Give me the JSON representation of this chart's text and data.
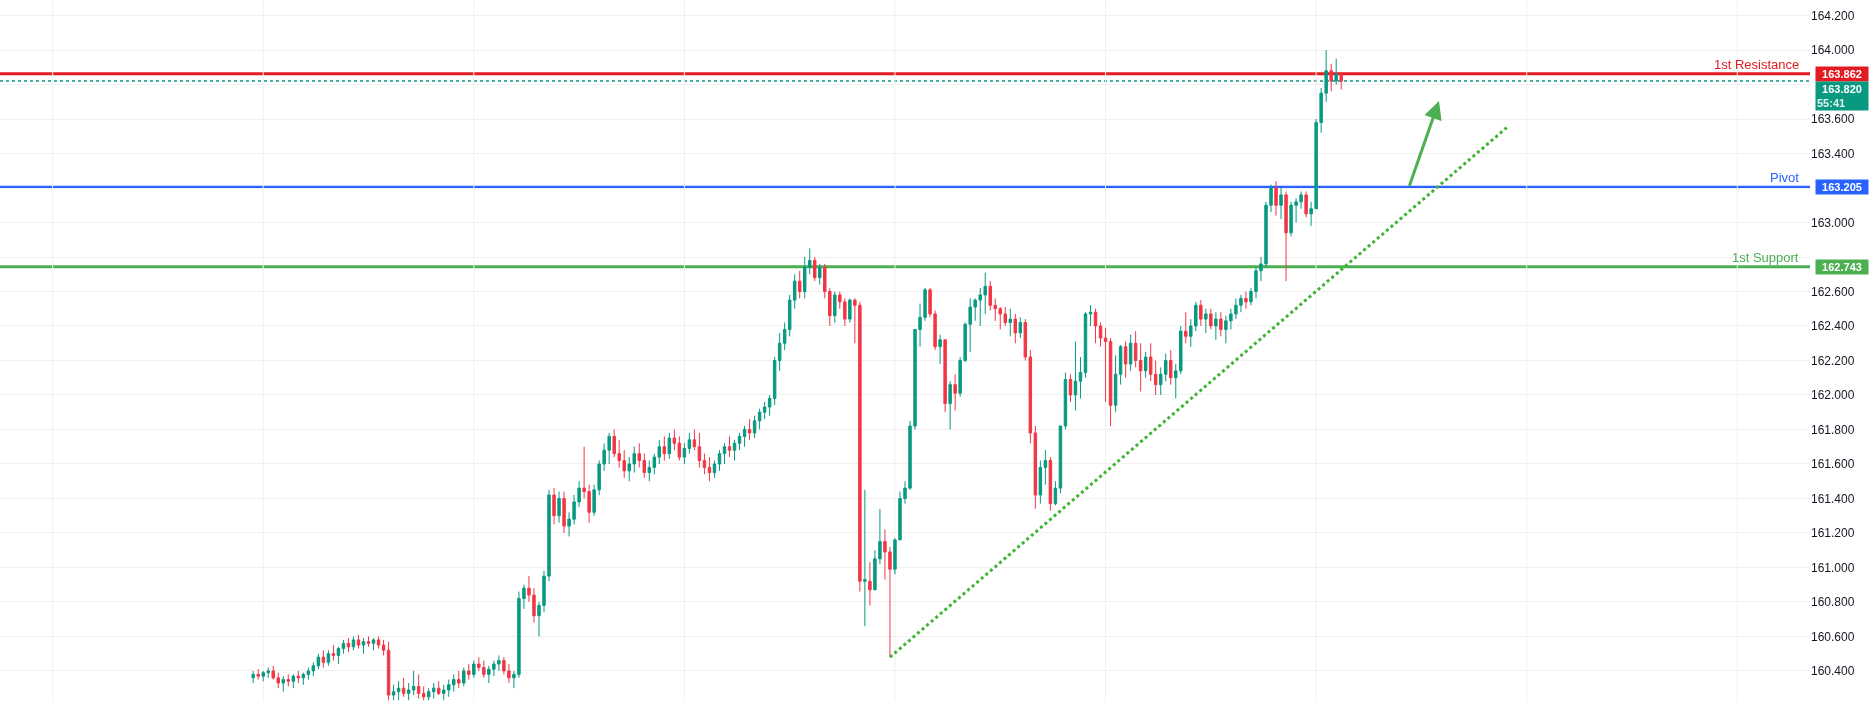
{
  "chart_data": {
    "type": "candlestick",
    "categories": [
      null,
      null,
      null,
      null,
      null,
      null,
      null,
      null,
      null,
      null,
      null,
      null,
      null,
      null,
      null,
      null,
      null,
      null,
      null,
      null,
      null,
      null,
      null,
      null,
      null,
      null,
      null,
      null,
      null,
      null,
      null,
      null,
      null,
      null,
      null,
      null,
      null,
      null,
      null,
      null,
      null,
      null,
      null,
      null,
      null,
      null,
      null,
      null,
      null,
      null,
      null,
      null,
      null,
      null,
      null,
      null,
      null,
      null,
      null,
      null,
      null,
      null,
      null,
      null,
      null,
      null,
      null,
      null,
      null,
      null,
      null,
      null,
      null,
      null,
      null,
      null,
      null,
      null,
      null,
      null,
      null,
      null,
      null,
      null,
      null,
      null,
      null,
      null,
      null,
      null,
      null,
      null,
      null,
      null,
      null,
      null,
      null,
      null,
      null,
      null,
      null,
      null,
      null,
      null,
      null,
      null,
      null,
      null,
      null,
      null,
      null,
      null,
      null,
      null,
      null,
      null,
      null,
      null,
      null,
      null,
      null,
      null,
      null,
      null,
      null,
      null,
      null,
      null,
      null,
      null,
      null,
      null,
      null,
      null,
      null,
      null,
      null,
      null,
      null,
      null,
      null,
      null,
      null,
      null,
      null,
      null,
      null,
      null,
      null,
      null,
      null,
      null,
      null,
      null,
      null,
      null,
      null,
      null,
      null,
      null,
      null,
      null,
      null,
      null,
      null,
      null,
      null,
      null,
      null,
      null,
      null,
      null,
      null,
      null,
      null,
      null,
      null,
      null,
      null,
      null,
      null,
      null,
      null,
      null,
      null,
      null,
      null,
      null,
      null,
      null,
      null,
      null,
      null,
      null,
      null,
      null,
      null,
      null,
      null,
      null,
      null,
      null,
      null,
      null,
      null,
      null,
      null,
      null,
      null,
      null,
      null,
      null,
      null,
      null,
      null,
      null,
      null,
      null,
      null,
      null,
      null,
      null,
      null,
      null,
      null,
      null,
      null,
      null,
      null,
      null,
      null,
      null,
      null,
      null,
      null,
      null,
      null,
      null,
      null,
      null,
      null,
      null,
      null,
      null,
      null,
      null,
      null,
      null,
      null,
      null,
      null,
      null,
      null,
      null,
      null,
      null,
      null,
      null,
      null,
      null,
      null,
      null,
      null,
      null,
      null,
      null,
      null,
      null,
      null,
      null,
      null,
      null,
      null,
      null,
      null,
      null,
      null,
      null,
      null,
      null,
      null,
      null,
      null,
      null,
      null,
      null,
      null,
      null,
      null,
      null,
      null,
      null,
      null,
      null,
      null,
      null,
      null,
      null,
      null,
      null,
      null,
      null,
      null,
      null,
      null,
      null,
      null,
      null,
      null,
      null,
      null,
      null,
      null,
      null,
      null,
      null,
      null,
      null,
      null,
      null,
      null,
      null,
      null,
      null,
      null,
      null,
      null,
      null,
      null,
      null,
      null,
      null,
      null,
      null,
      null,
      null,
      null,
      null,
      null,
      null,
      null,
      null,
      null,
      null,
      null,
      null,
      null,
      null,
      null,
      null,
      null,
      null,
      null,
      null,
      null,
      null,
      null,
      null,
      null,
      null,
      null
    ],
    "colors": [
      null,
      null,
      null,
      null,
      null,
      null,
      null,
      null,
      null,
      null,
      null,
      null,
      null,
      null,
      null,
      null,
      null,
      null,
      null,
      null,
      null,
      null,
      null,
      null,
      null,
      null,
      null,
      null,
      null,
      null,
      null,
      null,
      null,
      null,
      null,
      null,
      null,
      null,
      null,
      null,
      null,
      null,
      null,
      null,
      null,
      null,
      null,
      null,
      null,
      null,
      "#089981",
      "#f23645",
      "#089981",
      "#089981",
      "#f23645",
      "#f23645",
      "#089981",
      "#f23645",
      "#089981",
      "#f23645",
      "#089981",
      "#089981",
      "#089981",
      "#089981",
      "#f23645",
      "#089981",
      "#f23645",
      "#089981",
      "#089981",
      "#f23645",
      "#089981",
      "#f23645",
      "#089981",
      "#f23645",
      "#089981",
      "#f23645",
      "#f23645",
      "#f23645",
      "#089981",
      "#089981",
      "#f23645",
      "#089981",
      "#089981",
      "#f23645",
      "#f23645",
      "#089981",
      "#089981",
      "#f23645",
      "#089981",
      "#089981",
      "#089981",
      "#f23645",
      "#089981",
      "#f23645",
      "#089981",
      "#f23645",
      "#f23645",
      "#089981",
      "#089981",
      "#089981",
      "#f23645",
      "#f23645",
      "#089981",
      "#089981",
      "#089981",
      "#f23645",
      "#f23645",
      "#089981",
      "#089981",
      "#089981",
      "#f23645",
      "#089981",
      "#f23645",
      "#089981",
      "#089981",
      "#089981",
      "#f23645",
      "#f23645",
      "#089981",
      "#089981",
      "#089981",
      "#089981",
      "#f23645",
      "#f23645",
      "#f23645",
      "#089981",
      "#089981",
      "#f23645",
      "#f23645",
      "#089981",
      "#089981",
      "#089981",
      "#f23645",
      "#089981",
      "#f23645",
      "#f23645",
      "#089981",
      "#089981",
      "#f23645",
      "#f23645",
      "#f23645",
      "#f23645",
      "#089981",
      "#089981",
      "#089981",
      "#f23645",
      "#089981",
      "#089981",
      "#089981",
      "#f23645",
      "#089981",
      "#089981",
      "#089981",
      "#089981",
      "#089981",
      "#089981",
      "#089981",
      "#089981",
      "#089981",
      "#f23645",
      "#089981",
      "#089981",
      "#f23645",
      "#089981",
      "#f23645",
      "#f23645",
      "#089981",
      "#f23645",
      "#f23645",
      "#089981",
      "#f23645",
      "#f23645",
      "#089981",
      "#f23645",
      "#089981",
      "#089981",
      "#f23645",
      "#f23645",
      "#089981",
      "#089981",
      "#089981",
      "#089981",
      "#089981",
      "#089981",
      "#089981",
      "#f23645",
      "#f23645",
      "#089981",
      "#f23645",
      "#089981",
      "#f23645",
      "#089981",
      "#089981",
      "#089981",
      "#089981",
      "#089981",
      "#089981",
      "#f23645",
      "#f23645",
      "#f23645",
      "#f23645",
      "#089981",
      "#f23645",
      "#089981",
      "#f23645",
      "#f23645",
      "#f23645",
      "#089981",
      "#089981",
      "#f23645",
      "#089981",
      "#089981",
      "#089981",
      "#f23645",
      "#089981",
      "#089981",
      "#089981",
      "#089981",
      "#f23645",
      "#f23645",
      "#f23645",
      "#f23645",
      "#089981",
      "#089981",
      "#f23645",
      "#089981",
      "#f23645",
      "#f23645",
      "#089981",
      "#f23645",
      "#f23645",
      "#089981",
      "#089981",
      "#f23645",
      "#089981",
      "#089981",
      "#f23645",
      "#089981",
      "#089981",
      "#f23645",
      "#089981",
      "#f23645",
      "#089981",
      "#f23645",
      "#089981",
      "#089981",
      "#089981",
      "#089981",
      "#f23645",
      "#089981",
      "#089981",
      "#089981",
      "#089981",
      "#089981",
      "#f23645",
      "#089981",
      "#f23645",
      "#089981",
      "#089981",
      "#089981",
      "#f23645",
      "#089981",
      "#089981",
      "#089981",
      "#089981",
      "#f23645",
      "#089981",
      "#f23645",
      null,
      null,
      null,
      null,
      null,
      null,
      null,
      null,
      null,
      null,
      null,
      null,
      null,
      null,
      null,
      null,
      null,
      null,
      null,
      null,
      null,
      null,
      null,
      null,
      null,
      null,
      null,
      null,
      null,
      null,
      null,
      null,
      null,
      null,
      null,
      null,
      null,
      null,
      null,
      null,
      null,
      null,
      null,
      null,
      null,
      null,
      null,
      null,
      null,
      null,
      null,
      null,
      null,
      null,
      null,
      null,
      null,
      null,
      null,
      null,
      null,
      null,
      null,
      null,
      null,
      null,
      null,
      null,
      null,
      null,
      null,
      null,
      null,
      null,
      null,
      null,
      null,
      null,
      null,
      null,
      null,
      null,
      null,
      null,
      null,
      null,
      null,
      null,
      null,
      null,
      null,
      null,
      null
    ],
    "ohlc": [
      null,
      null,
      null,
      null,
      null,
      null,
      null,
      null,
      null,
      null,
      null,
      null,
      null,
      null,
      null,
      null,
      null,
      null,
      null,
      null,
      null,
      null,
      null,
      null,
      null,
      null,
      null,
      null,
      null,
      null,
      null,
      null,
      null,
      null,
      null,
      null,
      null,
      null,
      null,
      null,
      null,
      null,
      null,
      null,
      null,
      null,
      null,
      null,
      null,
      null,
      [
        160.36,
        160.4,
        160.33,
        160.38
      ],
      [
        160.38,
        160.41,
        160.35,
        160.37
      ],
      [
        160.37,
        160.4,
        160.34,
        160.39
      ],
      [
        160.39,
        160.42,
        160.36,
        160.4
      ],
      [
        160.4,
        160.43,
        160.35,
        160.36
      ],
      [
        160.36,
        160.39,
        160.3,
        160.33
      ],
      [
        160.33,
        160.37,
        160.28,
        160.35
      ],
      [
        160.35,
        160.38,
        160.31,
        160.34
      ],
      [
        160.34,
        160.38,
        160.3,
        160.37
      ],
      [
        160.37,
        160.4,
        160.33,
        160.36
      ],
      [
        160.36,
        160.39,
        160.32,
        160.38
      ],
      [
        160.38,
        160.42,
        160.35,
        160.4
      ],
      [
        160.4,
        160.45,
        160.37,
        160.43
      ],
      [
        160.43,
        160.5,
        160.41,
        160.48
      ],
      [
        160.48,
        160.52,
        160.42,
        160.45
      ],
      [
        160.45,
        160.52,
        160.43,
        160.5
      ],
      [
        160.5,
        160.55,
        160.46,
        160.49
      ],
      [
        160.49,
        160.54,
        160.44,
        160.53
      ],
      [
        160.53,
        160.58,
        160.5,
        160.56
      ],
      [
        160.56,
        160.59,
        160.51,
        160.54
      ],
      [
        160.54,
        160.6,
        160.52,
        160.58
      ],
      [
        160.58,
        160.61,
        160.53,
        160.55
      ],
      [
        160.55,
        160.59,
        160.5,
        160.57
      ],
      [
        160.57,
        160.6,
        160.54,
        160.56
      ],
      [
        160.56,
        160.59,
        160.52,
        160.58
      ],
      [
        160.58,
        160.6,
        160.53,
        160.55
      ],
      [
        160.55,
        160.58,
        160.49,
        160.52
      ],
      [
        160.52,
        160.57,
        160.23,
        160.26
      ],
      [
        160.26,
        160.32,
        160.23,
        160.28
      ],
      [
        160.28,
        160.34,
        160.23,
        160.3
      ],
      [
        160.3,
        160.36,
        160.25,
        160.27
      ],
      [
        160.27,
        160.33,
        160.23,
        160.29
      ],
      [
        160.29,
        160.4,
        160.26,
        160.31
      ],
      [
        160.31,
        160.38,
        160.24,
        160.27
      ],
      [
        160.27,
        160.31,
        160.23,
        160.25
      ],
      [
        160.25,
        160.3,
        160.23,
        160.28
      ],
      [
        160.28,
        160.33,
        160.24,
        160.3
      ],
      [
        160.3,
        160.34,
        160.26,
        160.27
      ],
      [
        160.27,
        160.32,
        160.23,
        160.29
      ],
      [
        160.29,
        160.35,
        160.25,
        160.32
      ],
      [
        160.32,
        160.38,
        160.28,
        160.35
      ],
      [
        160.35,
        160.4,
        160.3,
        160.33
      ],
      [
        160.33,
        160.42,
        160.31,
        160.4
      ],
      [
        160.4,
        160.44,
        160.35,
        160.38
      ],
      [
        160.38,
        160.46,
        160.36,
        160.44
      ],
      [
        160.44,
        160.48,
        160.4,
        160.42
      ],
      [
        160.42,
        160.46,
        160.36,
        160.38
      ],
      [
        160.38,
        160.43,
        160.33,
        160.41
      ],
      [
        160.41,
        160.46,
        160.37,
        160.44
      ],
      [
        160.44,
        160.49,
        160.4,
        160.46
      ],
      [
        160.46,
        160.48,
        160.38,
        160.4
      ],
      [
        160.4,
        160.44,
        160.33,
        160.36
      ],
      [
        160.36,
        160.4,
        160.3,
        160.38
      ],
      [
        160.38,
        160.86,
        160.36,
        160.82
      ],
      [
        160.82,
        160.9,
        160.76,
        160.88
      ],
      [
        160.88,
        160.95,
        160.8,
        160.84
      ],
      [
        160.84,
        160.88,
        160.68,
        160.72
      ],
      [
        160.72,
        160.8,
        160.6,
        160.78
      ],
      [
        160.78,
        160.98,
        160.74,
        160.95
      ],
      [
        160.95,
        161.45,
        160.92,
        161.42
      ],
      [
        161.42,
        161.46,
        161.25,
        161.3
      ],
      [
        161.3,
        161.44,
        161.26,
        161.4
      ],
      [
        161.4,
        161.44,
        161.2,
        161.24
      ],
      [
        161.24,
        161.32,
        161.18,
        161.28
      ],
      [
        161.28,
        161.42,
        161.25,
        161.38
      ],
      [
        161.38,
        161.5,
        161.35,
        161.46
      ],
      [
        161.46,
        161.7,
        161.4,
        161.44
      ],
      [
        161.44,
        161.48,
        161.26,
        161.32
      ],
      [
        161.32,
        161.48,
        161.3,
        161.45
      ],
      [
        161.45,
        161.62,
        161.42,
        161.6
      ],
      [
        161.6,
        161.72,
        161.56,
        161.68
      ],
      [
        161.68,
        161.78,
        161.6,
        161.76
      ],
      [
        161.76,
        161.8,
        161.64,
        161.66
      ],
      [
        161.66,
        161.74,
        161.58,
        161.62
      ],
      [
        161.62,
        161.68,
        161.52,
        161.56
      ],
      [
        161.56,
        161.64,
        161.5,
        161.6
      ],
      [
        161.6,
        161.7,
        161.55,
        161.66
      ],
      [
        161.66,
        161.72,
        161.58,
        161.62
      ],
      [
        161.62,
        161.66,
        161.52,
        161.55
      ],
      [
        161.55,
        161.62,
        161.5,
        161.58
      ],
      [
        161.58,
        161.66,
        161.54,
        161.64
      ],
      [
        161.64,
        161.74,
        161.6,
        161.7
      ],
      [
        161.7,
        161.76,
        161.62,
        161.66
      ],
      [
        161.66,
        161.78,
        161.63,
        161.75
      ],
      [
        161.75,
        161.8,
        161.68,
        161.72
      ],
      [
        161.72,
        161.76,
        161.62,
        161.64
      ],
      [
        161.64,
        161.72,
        161.6,
        161.69
      ],
      [
        161.69,
        161.78,
        161.66,
        161.74
      ],
      [
        161.74,
        161.8,
        161.68,
        161.7
      ],
      [
        161.7,
        161.78,
        161.58,
        161.62
      ],
      [
        161.62,
        161.66,
        161.54,
        161.58
      ],
      [
        161.58,
        161.64,
        161.5,
        161.55
      ],
      [
        161.55,
        161.62,
        161.52,
        161.6
      ],
      [
        161.6,
        161.68,
        161.56,
        161.66
      ],
      [
        161.66,
        161.72,
        161.6,
        161.7
      ],
      [
        161.7,
        161.76,
        161.64,
        161.68
      ],
      [
        161.68,
        161.74,
        161.62,
        161.72
      ],
      [
        161.72,
        161.78,
        161.68,
        161.76
      ],
      [
        161.76,
        161.82,
        161.7,
        161.8
      ],
      [
        161.8,
        161.86,
        161.74,
        161.78
      ],
      [
        161.78,
        161.88,
        161.75,
        161.85
      ],
      [
        161.85,
        161.92,
        161.8,
        161.9
      ],
      [
        161.9,
        161.96,
        161.86,
        161.93
      ],
      [
        161.93,
        162.0,
        161.88,
        161.98
      ],
      [
        161.98,
        162.22,
        161.94,
        162.2
      ],
      [
        162.2,
        162.36,
        162.14,
        162.3
      ],
      [
        162.3,
        162.42,
        162.26,
        162.38
      ],
      [
        162.38,
        162.58,
        162.34,
        162.55
      ],
      [
        162.55,
        162.7,
        162.5,
        162.66
      ],
      [
        162.66,
        162.72,
        162.56,
        162.6
      ],
      [
        162.6,
        162.8,
        162.56,
        162.74
      ],
      [
        162.74,
        162.85,
        162.7,
        162.78
      ],
      [
        162.78,
        162.8,
        162.66,
        162.68
      ],
      [
        162.68,
        162.76,
        162.64,
        162.74
      ],
      [
        162.74,
        162.76,
        162.56,
        162.6
      ],
      [
        162.6,
        162.62,
        162.4,
        162.46
      ],
      [
        162.46,
        162.6,
        162.42,
        162.58
      ],
      [
        162.58,
        162.6,
        162.5,
        162.54
      ],
      [
        162.54,
        162.56,
        162.4,
        162.44
      ],
      [
        162.44,
        162.56,
        162.42,
        162.55
      ],
      [
        162.55,
        162.56,
        162.3,
        162.52
      ],
      [
        162.52,
        162.54,
        160.86,
        160.92
      ],
      [
        160.92,
        161.45,
        160.66,
        160.93
      ],
      [
        160.92,
        161.03,
        160.78,
        160.87
      ],
      [
        160.87,
        161.1,
        160.87,
        161.05
      ],
      [
        161.05,
        161.34,
        161.02,
        161.15
      ],
      [
        161.15,
        161.22,
        160.93,
        161.09
      ],
      [
        161.09,
        161.12,
        160.48,
        160.99
      ],
      [
        160.99,
        161.17,
        160.96,
        161.16
      ],
      [
        161.16,
        161.44,
        161.16,
        161.4
      ],
      [
        161.4,
        161.5,
        161.37,
        161.46
      ],
      [
        161.46,
        161.85,
        161.45,
        161.82
      ],
      [
        161.82,
        162.38,
        161.8,
        162.38
      ],
      [
        162.38,
        162.53,
        162.28,
        162.45
      ],
      [
        162.45,
        162.62,
        162.43,
        162.61
      ],
      [
        162.61,
        162.62,
        162.45,
        162.47
      ],
      [
        162.47,
        162.49,
        162.26,
        162.28
      ],
      [
        162.28,
        162.35,
        162.18,
        162.32
      ],
      [
        162.32,
        162.32,
        161.9,
        161.95
      ],
      [
        161.95,
        162.08,
        161.8,
        162.06
      ],
      [
        162.06,
        162.12,
        161.91,
        162.01
      ],
      [
        162.01,
        162.22,
        161.99,
        162.2
      ],
      [
        162.2,
        162.42,
        162.19,
        162.41
      ],
      [
        162.41,
        162.56,
        162.25,
        162.51
      ],
      [
        162.51,
        162.56,
        162.43,
        162.55
      ],
      [
        162.55,
        162.62,
        162.4,
        162.58
      ],
      [
        162.58,
        162.71,
        162.47,
        162.63
      ],
      [
        162.63,
        162.66,
        162.49,
        162.52
      ],
      [
        162.52,
        162.56,
        162.43,
        162.5
      ],
      [
        162.5,
        162.51,
        162.38,
        162.47
      ],
      [
        162.47,
        162.51,
        162.4,
        162.42
      ],
      [
        162.42,
        162.5,
        162.34,
        162.44
      ],
      [
        162.44,
        162.47,
        162.3,
        162.36
      ],
      [
        162.36,
        162.45,
        162.33,
        162.42
      ],
      [
        162.42,
        162.44,
        162.2,
        162.22
      ],
      [
        162.22,
        162.26,
        161.72,
        161.78
      ],
      [
        161.78,
        161.82,
        161.34,
        161.42
      ],
      [
        161.42,
        161.62,
        161.37,
        161.58
      ],
      [
        161.58,
        161.68,
        161.48,
        161.62
      ],
      [
        161.62,
        161.64,
        161.33,
        161.37
      ],
      [
        161.37,
        161.5,
        161.36,
        161.46
      ],
      [
        161.46,
        161.82,
        161.43,
        161.82
      ],
      [
        161.82,
        162.13,
        161.8,
        162.09
      ],
      [
        162.09,
        162.12,
        161.96,
        162.0
      ],
      [
        162.0,
        162.31,
        161.91,
        162.08
      ],
      [
        162.08,
        162.22,
        161.98,
        162.13
      ],
      [
        162.13,
        162.48,
        162.1,
        162.47
      ],
      [
        162.47,
        162.52,
        162.4,
        162.48
      ],
      [
        162.48,
        162.5,
        162.3,
        162.4
      ],
      [
        162.4,
        162.42,
        162.28,
        162.33
      ],
      [
        162.33,
        162.39,
        161.96,
        162.31
      ],
      [
        162.31,
        162.33,
        161.82,
        161.94
      ],
      [
        161.94,
        162.23,
        161.9,
        162.12
      ],
      [
        162.12,
        162.29,
        162.06,
        162.28
      ],
      [
        162.28,
        162.31,
        162.1,
        162.18
      ],
      [
        162.18,
        162.35,
        162.14,
        162.3
      ],
      [
        162.3,
        162.37,
        162.16,
        162.2
      ],
      [
        162.2,
        162.3,
        162.02,
        162.14
      ],
      [
        162.14,
        162.25,
        162.1,
        162.22
      ],
      [
        162.22,
        162.3,
        162.08,
        162.12
      ],
      [
        162.12,
        162.2,
        162.0,
        162.06
      ],
      [
        162.06,
        162.16,
        162.0,
        162.12
      ],
      [
        162.12,
        162.24,
        162.08,
        162.2
      ],
      [
        162.2,
        162.26,
        162.06,
        162.1
      ],
      [
        162.1,
        162.18,
        161.98,
        162.14
      ],
      [
        162.14,
        162.4,
        162.12,
        162.37
      ],
      [
        162.37,
        162.48,
        162.3,
        162.34
      ],
      [
        162.34,
        162.44,
        162.28,
        162.4
      ],
      [
        162.4,
        162.54,
        162.37,
        162.52
      ],
      [
        162.52,
        162.55,
        162.4,
        162.44
      ],
      [
        162.44,
        162.5,
        162.36,
        162.47
      ],
      [
        162.47,
        162.5,
        162.38,
        162.4
      ],
      [
        162.4,
        162.48,
        162.32,
        162.44
      ],
      [
        162.44,
        162.48,
        162.34,
        162.38
      ],
      [
        162.38,
        162.46,
        162.3,
        162.43
      ],
      [
        162.43,
        162.5,
        162.38,
        162.47
      ],
      [
        162.47,
        162.56,
        162.44,
        162.52
      ],
      [
        162.52,
        162.58,
        162.48,
        162.56
      ],
      [
        162.56,
        162.6,
        162.5,
        162.54
      ],
      [
        162.54,
        162.62,
        162.52,
        162.6
      ],
      [
        162.6,
        162.74,
        162.56,
        162.72
      ],
      [
        162.72,
        162.8,
        162.66,
        162.76
      ],
      [
        162.76,
        163.12,
        162.74,
        163.1
      ],
      [
        163.1,
        163.22,
        163.06,
        163.2
      ],
      [
        163.2,
        163.24,
        163.04,
        163.1
      ],
      [
        163.1,
        163.2,
        163.02,
        163.16
      ],
      [
        163.16,
        163.18,
        162.66,
        162.94
      ],
      [
        162.94,
        163.12,
        162.92,
        163.1
      ],
      [
        163.1,
        163.14,
        163.0,
        163.12
      ],
      [
        163.12,
        163.18,
        163.08,
        163.16
      ],
      [
        163.16,
        163.18,
        163.03,
        163.05
      ],
      [
        163.05,
        163.12,
        162.98,
        163.08
      ],
      [
        163.08,
        163.6,
        163.08,
        163.58
      ],
      [
        163.58,
        163.78,
        163.52,
        163.75
      ],
      [
        163.75,
        164.0,
        163.7,
        163.88
      ],
      [
        163.88,
        163.92,
        163.76,
        163.82
      ],
      [
        163.82,
        163.95,
        163.8,
        163.86
      ],
      [
        163.86,
        163.86,
        163.77,
        163.82
      ],
      null,
      null,
      null,
      null,
      null,
      null,
      null,
      null,
      null,
      null,
      null,
      null,
      null,
      null,
      null,
      null,
      null,
      null,
      null,
      null,
      null,
      null,
      null,
      null,
      null,
      null,
      null,
      null,
      null,
      null,
      null,
      null,
      null,
      null,
      null,
      null,
      null,
      null,
      null,
      null,
      null,
      null,
      null,
      null,
      null,
      null,
      null,
      null,
      null,
      null,
      null,
      null,
      null,
      null,
      null,
      null,
      null,
      null,
      null,
      null,
      null,
      null,
      null,
      null,
      null,
      null,
      null,
      null,
      null,
      null,
      null,
      null,
      null,
      null,
      null,
      null,
      null,
      null,
      null,
      null,
      null,
      null,
      null,
      null,
      null,
      null,
      null,
      null,
      null,
      null,
      null,
      null,
      null
    ],
    "series": [
      {
        "type": "line",
        "color": "#3cb531",
        "line_style": "dotted",
        "values": [
          null,
          null,
          null,
          null,
          null,
          null,
          null,
          null,
          null,
          null,
          null,
          null,
          null,
          null,
          null,
          null,
          null,
          null,
          null,
          null,
          null,
          null,
          null,
          null,
          null,
          null,
          null,
          null,
          null,
          null,
          null,
          null,
          null,
          null,
          null,
          null,
          null,
          null,
          null,
          null,
          null,
          null,
          null,
          null,
          null,
          null,
          null,
          null,
          null,
          null,
          null,
          null,
          null,
          null,
          null,
          null,
          null,
          null,
          null,
          null,
          null,
          null,
          null,
          null,
          null,
          null,
          null,
          null,
          null,
          null,
          null,
          null,
          null,
          null,
          null,
          null,
          null,
          null,
          null,
          null,
          null,
          null,
          null,
          null,
          null,
          null,
          null,
          null,
          null,
          null,
          null,
          null,
          null,
          null,
          null,
          null,
          null,
          null,
          null,
          null,
          null,
          null,
          null,
          null,
          null,
          null,
          null,
          null,
          null,
          null,
          null,
          null,
          null,
          null,
          null,
          null,
          null,
          null,
          null,
          null,
          null,
          null,
          null,
          null,
          null,
          null,
          null,
          null,
          null,
          null,
          null,
          null,
          null,
          null,
          null,
          null,
          null,
          null,
          null,
          null,
          null,
          null,
          null,
          null,
          null,
          null,
          null,
          null,
          null,
          null,
          null,
          null,
          null,
          null,
          null,
          null,
          null,
          null,
          null,
          null,
          null,
          null,
          null,
          null,
          null,
          null,
          null,
          null,
          null,
          null,
          null,
          null,
          null,
          null,
          null,
          null,
          null,
          160.48,
          null,
          null,
          null,
          null,
          null,
          null,
          null,
          null,
          null,
          null,
          null,
          null,
          null,
          null,
          null,
          null,
          null,
          null,
          null,
          null,
          null,
          null,
          null,
          null,
          null,
          null,
          null,
          null,
          null,
          null,
          null,
          null,
          null,
          null,
          null,
          null,
          null,
          null,
          null,
          null,
          null,
          null,
          null,
          null,
          null,
          null,
          null,
          null,
          null,
          null,
          null,
          null,
          null,
          null,
          null,
          null,
          null,
          null,
          null,
          null,
          null,
          null,
          null,
          null,
          null,
          null,
          null,
          null,
          null,
          null,
          null,
          null,
          null,
          null,
          null,
          null,
          null,
          null,
          null,
          null,
          null,
          null,
          null,
          null,
          null,
          null,
          null,
          null,
          null,
          null,
          null,
          null,
          null,
          null,
          null,
          null,
          null,
          null,
          null,
          null,
          null,
          null,
          null,
          null,
          null,
          null,
          null,
          null,
          null,
          null,
          null,
          null,
          null,
          null,
          null,
          null,
          null,
          null,
          null,
          null,
          null,
          null,
          163.55,
          null,
          null,
          null,
          null,
          null,
          null,
          null,
          null,
          null,
          null,
          null,
          null,
          null,
          null,
          null,
          null,
          null,
          null,
          null,
          null,
          null,
          null,
          null,
          null,
          null,
          null,
          null,
          null,
          null,
          null,
          null,
          null,
          null,
          null,
          null,
          null,
          null,
          null,
          null,
          null,
          null,
          null,
          null,
          null,
          null,
          null,
          null,
          null,
          null,
          null,
          null,
          null,
          null,
          null,
          null,
          null,
          null,
          null,
          null,
          null
        ]
      }
    ],
    "ref_lines": [
      {
        "axis": "y",
        "value": 163.862,
        "label": "1st Resistance",
        "color": "#e31b23",
        "line_style": "solid"
      },
      {
        "axis": "y",
        "value": 163.82,
        "label": null,
        "color": "#089981",
        "line_style": "dotted"
      },
      {
        "axis": "y",
        "value": 163.205,
        "label": "Pivot",
        "color": "#2962ff",
        "line_style": "solid"
      },
      {
        "axis": "y",
        "value": 162.743,
        "label": "1st Support",
        "color": "#4caf50",
        "line_style": "solid"
      }
    ],
    "annotations": [
      "163.862",
      "163.820",
      "163.205",
      "162.743",
      "55:41"
    ],
    "ylim": [
      160.22,
      164.29
    ],
    "yticks": [
      {
        "value": 160.4,
        "label": "160.400"
      },
      {
        "value": 160.6,
        "label": "160.600"
      },
      {
        "value": 160.8,
        "label": "160.800"
      },
      {
        "value": 161.0,
        "label": "161.000"
      },
      {
        "value": 161.2,
        "label": "161.200"
      },
      {
        "value": 161.4,
        "label": "161.400"
      },
      {
        "value": 161.6,
        "label": "161.600"
      },
      {
        "value": 161.8,
        "label": "161.800"
      },
      {
        "value": 162.0,
        "label": "162.000"
      },
      {
        "value": 162.2,
        "label": "162.200"
      },
      {
        "value": 162.4,
        "label": "162.400"
      },
      {
        "value": 162.6,
        "label": "162.600"
      },
      {
        "value": 162.8,
        "label": null
      },
      {
        "value": 163.0,
        "label": "163.000"
      },
      {
        "value": 163.2,
        "label": null
      },
      {
        "value": 163.4,
        "label": "163.400"
      },
      {
        "value": 163.6,
        "label": "163.600"
      },
      {
        "value": 163.8,
        "label": null
      },
      {
        "value": 164.0,
        "label": "164.000"
      },
      {
        "value": 164.2,
        "label": "164.200"
      }
    ],
    "tick_labels": "y",
    "grid": true
  }
}
